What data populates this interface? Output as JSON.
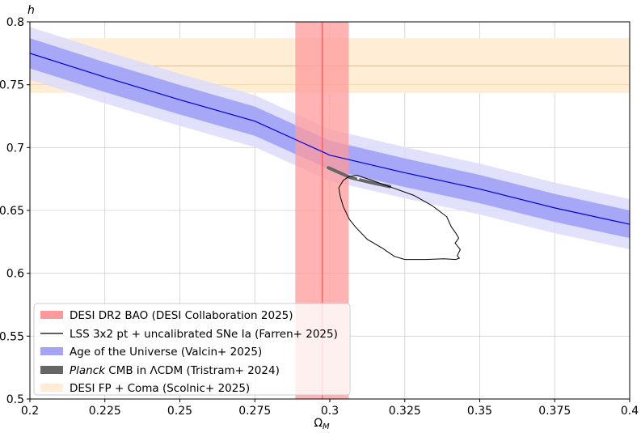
{
  "chart_data": {
    "type": "area",
    "xlabel": "Ω",
    "xlabel_sub": "M",
    "ylabel": "h",
    "xlim": [
      0.2,
      0.4
    ],
    "ylim": [
      0.5,
      0.8
    ],
    "grid": true,
    "legend_placement": "lower-left",
    "x_ticks": [
      0.2,
      0.225,
      0.25,
      0.275,
      0.3,
      0.325,
      0.35,
      0.375,
      0.4
    ],
    "x_tick_labels": [
      "0.2",
      "0.225",
      "0.25",
      "0.275",
      "0.3",
      "0.325",
      "0.35",
      "0.375",
      "0.4"
    ],
    "y_ticks": [
      0.5,
      0.55,
      0.6,
      0.65,
      0.7,
      0.75,
      0.8
    ],
    "y_tick_labels": [
      "0.5",
      "0.55",
      "0.6",
      "0.65",
      "0.7",
      "0.75",
      "0.8"
    ],
    "series": [
      {
        "name": "DESI DR2 BAO (DESI Collaboration 2025)",
        "kind": "vertical-band",
        "central": 0.2975,
        "lo": 0.2885,
        "hi": 0.3063,
        "color": "#ff9999",
        "line_color": "#ff5555"
      },
      {
        "name": "LSS 3x2 pt + uncalibrated SNe Ia (Farren+ 2025)",
        "kind": "contour",
        "color": "#000000",
        "points": [
          [
            0.3065,
            0.677
          ],
          [
            0.309,
            0.678
          ],
          [
            0.314,
            0.674
          ],
          [
            0.321,
            0.668
          ],
          [
            0.328,
            0.662
          ],
          [
            0.334,
            0.654
          ],
          [
            0.339,
            0.645
          ],
          [
            0.3405,
            0.637
          ],
          [
            0.342,
            0.632
          ],
          [
            0.343,
            0.628
          ],
          [
            0.3418,
            0.624
          ],
          [
            0.3435,
            0.619
          ],
          [
            0.3425,
            0.614
          ],
          [
            0.3432,
            0.612
          ],
          [
            0.342,
            0.611
          ],
          [
            0.338,
            0.6115
          ],
          [
            0.332,
            0.611
          ],
          [
            0.325,
            0.611
          ],
          [
            0.3215,
            0.6135
          ],
          [
            0.3175,
            0.62
          ],
          [
            0.3125,
            0.627
          ],
          [
            0.3085,
            0.637
          ],
          [
            0.3065,
            0.643
          ],
          [
            0.3045,
            0.653
          ],
          [
            0.3035,
            0.661
          ],
          [
            0.303,
            0.668
          ],
          [
            0.3045,
            0.674
          ],
          [
            0.3065,
            0.677
          ]
        ]
      },
      {
        "name": "Age of the Universe (Valcin+ 2025)",
        "kind": "curve-band",
        "center": [
          [
            0.2,
            0.775
          ],
          [
            0.225,
            0.756
          ],
          [
            0.25,
            0.738
          ],
          [
            0.275,
            0.721
          ],
          [
            0.3,
            0.694
          ],
          [
            0.325,
            0.68
          ],
          [
            0.35,
            0.667
          ],
          [
            0.375,
            0.652
          ],
          [
            0.4,
            0.639
          ]
        ],
        "band_1sigma": [
          0.012,
          0.011
        ],
        "band_2sigma": [
          0.021,
          0.02
        ],
        "color": "#0000dd",
        "fill_1sigma": "#a3a3f7",
        "fill_2sigma": "#dcdcfc"
      },
      {
        "name_prefix": "Planck",
        "name": "CMB in ΛCDM (Tristram+ 2024)",
        "kind": "segment",
        "points": [
          [
            0.2995,
            0.684
          ],
          [
            0.307,
            0.676
          ],
          [
            0.314,
            0.672
          ],
          [
            0.32,
            0.669
          ]
        ],
        "color": "#666666"
      },
      {
        "name": "DESI FP + Coma (Scolnic+ 2025)",
        "kind": "horizontal-band",
        "central": 0.765,
        "lo": 0.7435,
        "hi": 0.787,
        "inner_lo": 0.75,
        "color": "#ffedd5",
        "line_color": "#f5b66a"
      }
    ]
  }
}
